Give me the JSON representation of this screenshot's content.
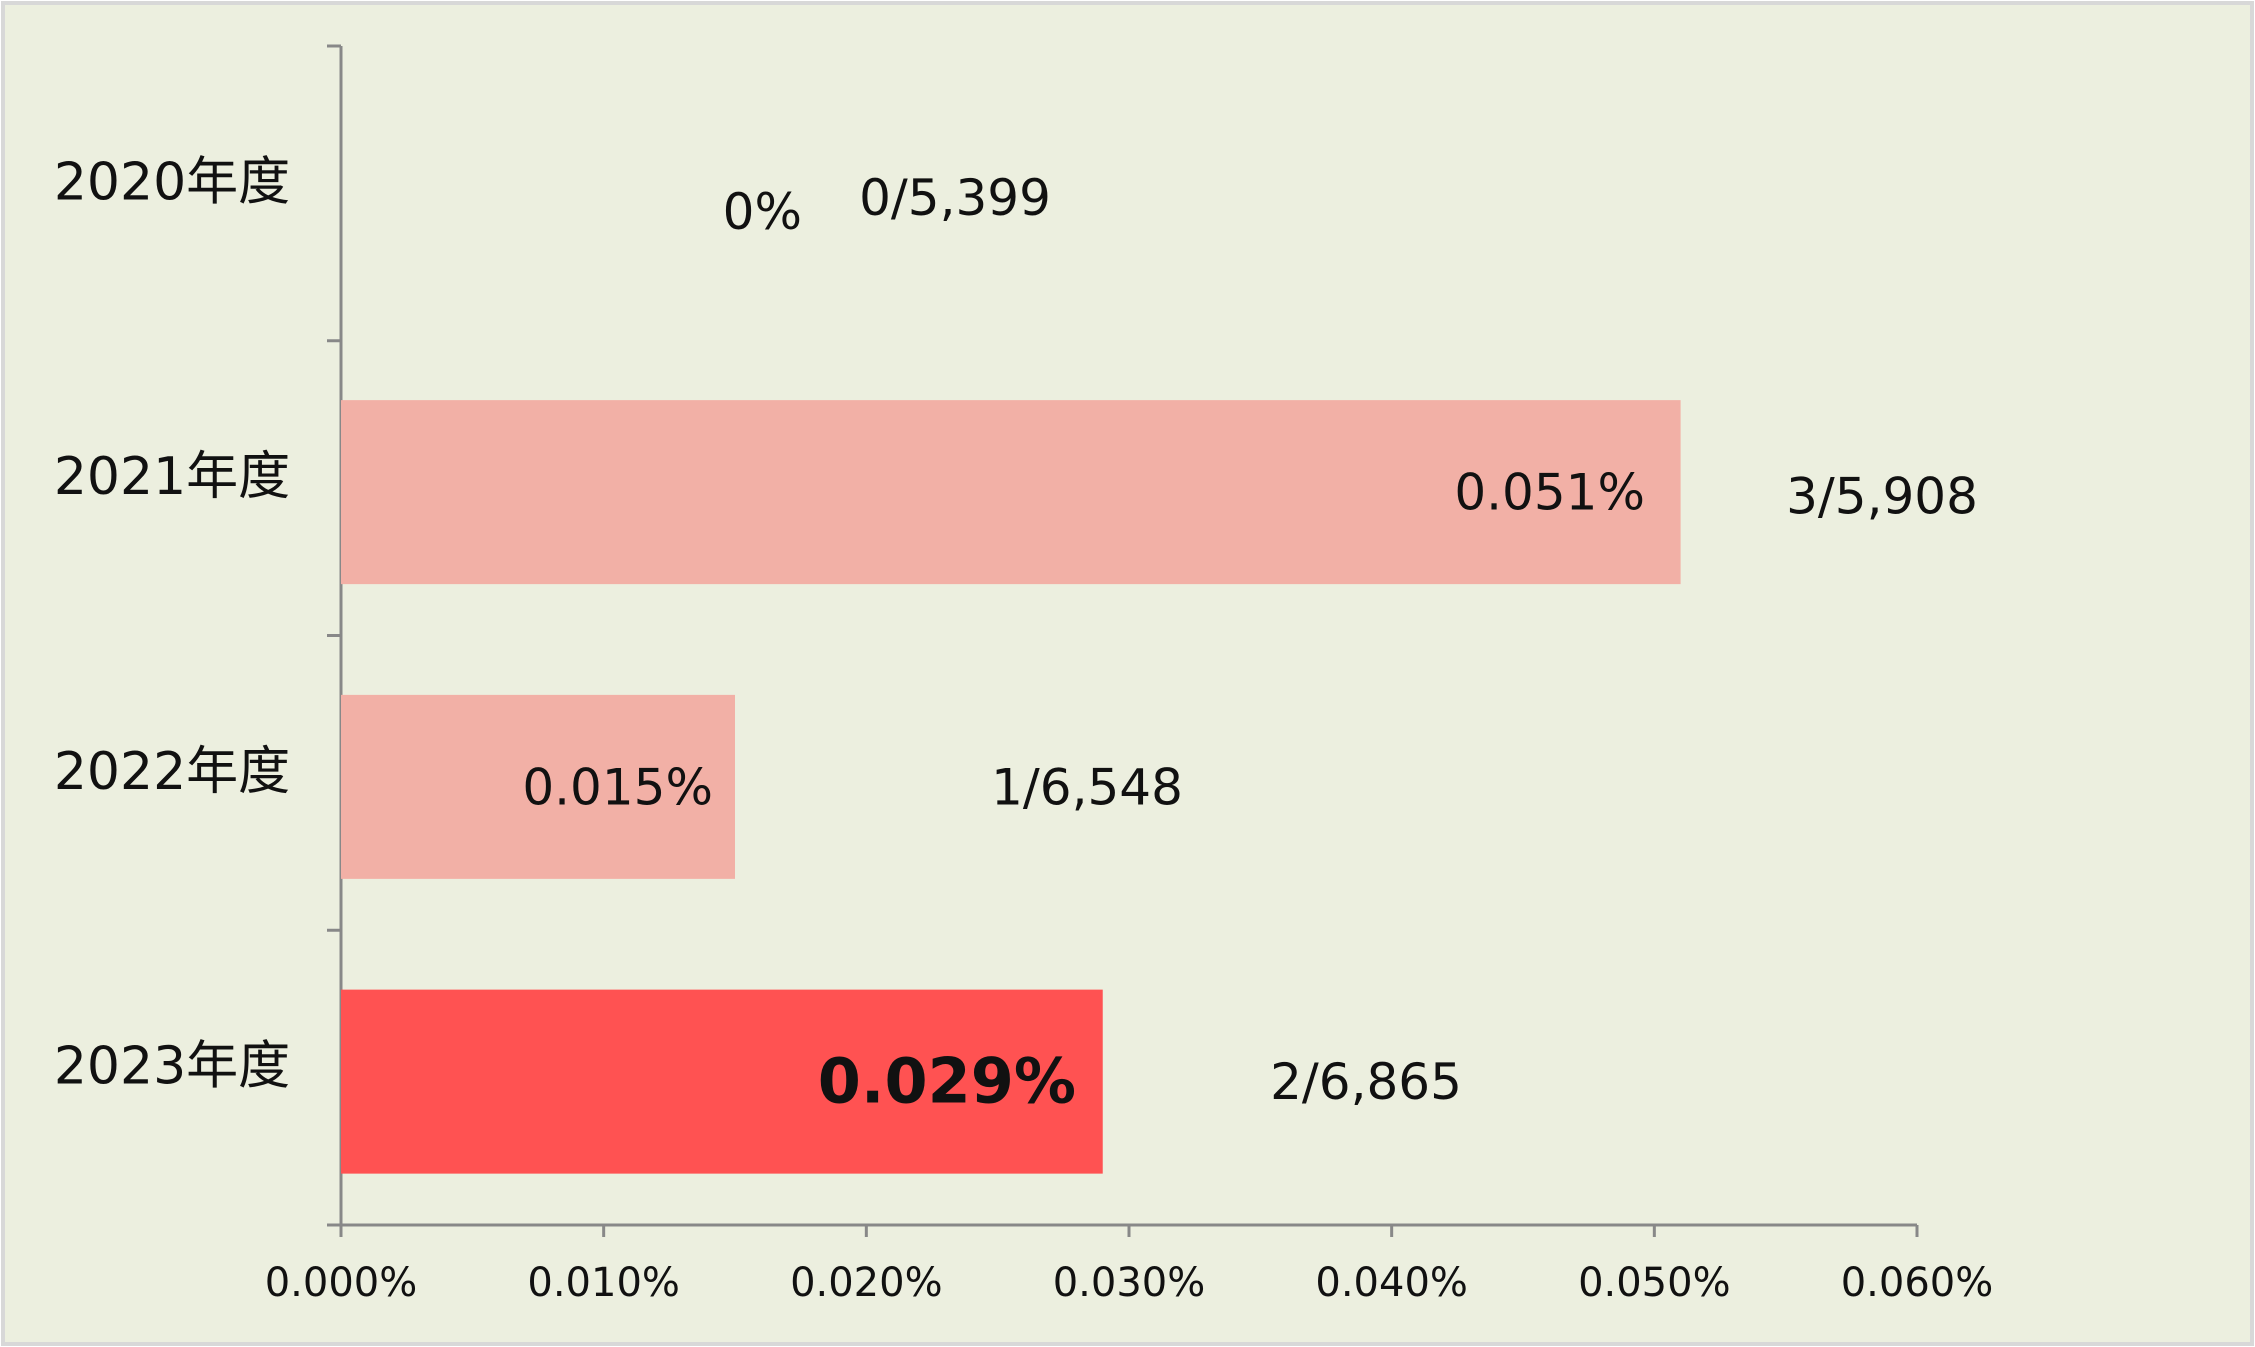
{
  "chart_data": {
    "type": "bar",
    "orientation": "horizontal",
    "categories": [
      "2020年度",
      "2021年度",
      "2022年度",
      "2023年度"
    ],
    "values": [
      0,
      0.051,
      0.015,
      0.029
    ],
    "value_labels": [
      "0%",
      "0.051%",
      "0.015%",
      "0.029%"
    ],
    "value_label_bold": [
      false,
      false,
      false,
      true
    ],
    "annotations": [
      "0/5,399",
      "3/5,908",
      "1/6,548",
      "2/6,865"
    ],
    "colors": [
      "#f2b0a6",
      "#f2b0a6",
      "#f2b0a6",
      "#ff5252"
    ],
    "xlim": [
      0,
      0.06
    ],
    "xticks": [
      {
        "value": 0,
        "label": "0.000%"
      },
      {
        "value": 0.01,
        "label": "0.010%"
      },
      {
        "value": 0.02,
        "label": "0.020%"
      },
      {
        "value": 0.03,
        "label": "0.030%"
      },
      {
        "value": 0.04,
        "label": "0.040%"
      },
      {
        "value": 0.05,
        "label": "0.050%"
      },
      {
        "value": 0.06,
        "label": "0.060%"
      }
    ],
    "grid": false
  }
}
